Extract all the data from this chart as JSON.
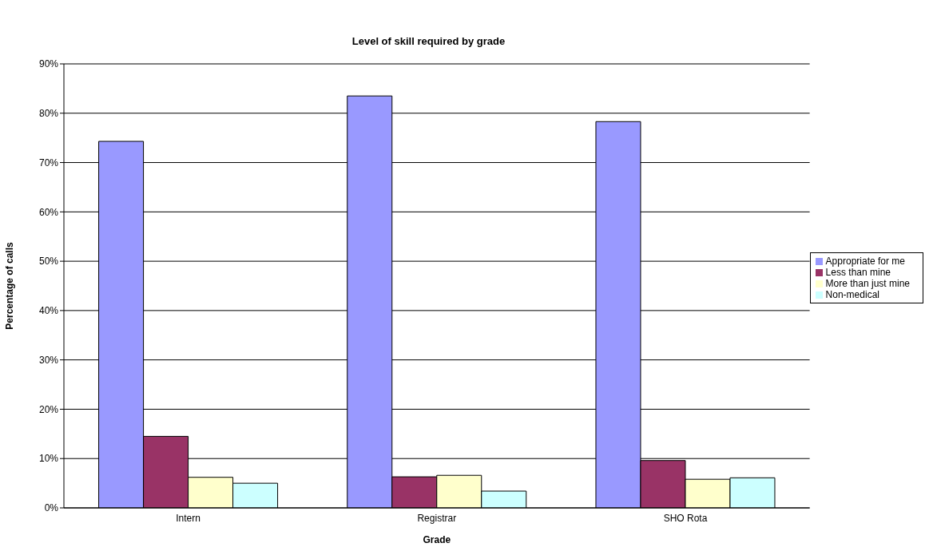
{
  "chart_data": {
    "type": "bar",
    "title": "Level of skill required by grade",
    "xlabel": "Grade",
    "ylabel": "Percentage of calls",
    "categories": [
      "Intern",
      "Registrar",
      "SHO Rota"
    ],
    "series": [
      {
        "name": "Appropriate for me",
        "color": "#9999ff",
        "values": [
          74.3,
          83.5,
          78.3
        ]
      },
      {
        "name": "Less than mine",
        "color": "#993366",
        "values": [
          14.5,
          6.3,
          9.6
        ]
      },
      {
        "name": "More than just mine",
        "color": "#ffffcc",
        "values": [
          6.2,
          6.6,
          5.8
        ]
      },
      {
        "name": "Non-medical",
        "color": "#ccffff",
        "values": [
          5.0,
          3.4,
          6.1
        ]
      }
    ],
    "ylim": [
      0,
      90
    ],
    "yticks": [
      {
        "value": 0,
        "label": "0%"
      },
      {
        "value": 10,
        "label": "10%"
      },
      {
        "value": 20,
        "label": "20%"
      },
      {
        "value": 30,
        "label": "30%"
      },
      {
        "value": 40,
        "label": "40%"
      },
      {
        "value": 50,
        "label": "50%"
      },
      {
        "value": 60,
        "label": "60%"
      },
      {
        "value": 70,
        "label": "70%"
      },
      {
        "value": 80,
        "label": "80%"
      },
      {
        "value": 90,
        "label": "90%"
      }
    ],
    "grid": "y",
    "legend": "right"
  }
}
